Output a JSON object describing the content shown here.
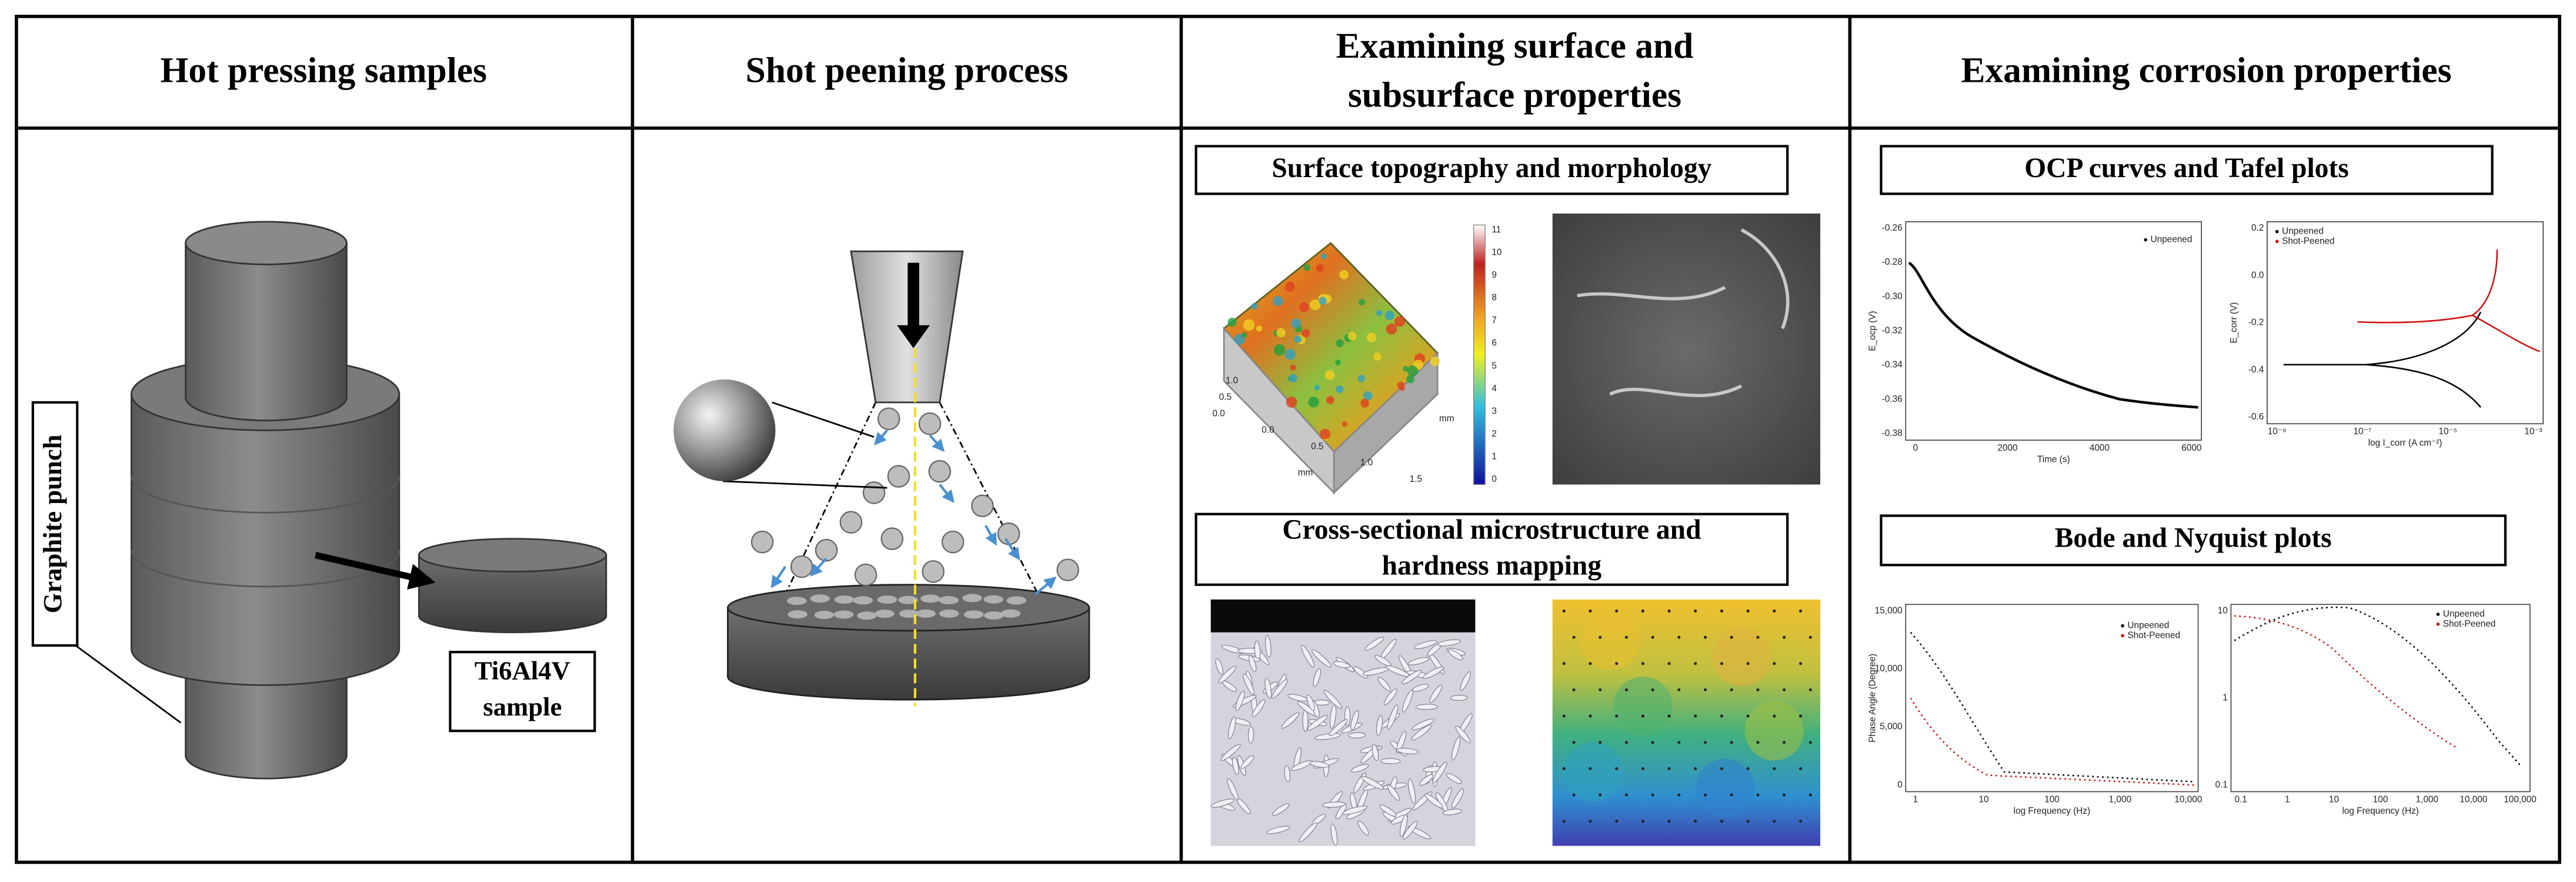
{
  "panels": [
    {
      "title": [
        "Hot pressing samples"
      ],
      "labels": {
        "punch": "Graphite punch",
        "sample": [
          "Ti6Al4V",
          "sample"
        ]
      }
    },
    {
      "title": [
        "Shot peening process"
      ]
    },
    {
      "title": [
        "Examining surface and",
        "subsurface properties"
      ],
      "sections": [
        {
          "title": [
            "Surface topography and morphology"
          ],
          "colorbar": [
            "11",
            "10",
            "9",
            "8",
            "7",
            "6",
            "5",
            "4",
            "3",
            "2",
            "1",
            "0"
          ],
          "axis_x": [
            "0.0",
            "0.5",
            "1.0",
            "1.5"
          ],
          "axis_y": [
            "0.0",
            "0.5",
            "1.0"
          ],
          "unit": "mm"
        },
        {
          "title": [
            "Cross-sectional microstructure and",
            "hardness mapping"
          ]
        }
      ]
    },
    {
      "title": [
        "Examining corrosion properties"
      ],
      "sections": [
        {
          "title": [
            "OCP curves and Tafel plots"
          ]
        },
        {
          "title": [
            "Bode and Nyquist plots"
          ]
        }
      ],
      "plots": {
        "ocp": {
          "legend": [
            "Unpeened"
          ],
          "ylabel": "E_ocp (V)",
          "xlabel": "Time (s)",
          "yticks": [
            "-0.26",
            "-0.28",
            "-0.30",
            "-0.32",
            "-0.34",
            "-0.36",
            "-0.38"
          ],
          "xticks": [
            "0",
            "2000",
            "4000",
            "6000"
          ]
        },
        "tafel": {
          "legend": [
            "Unpeened",
            "Shot-Peened"
          ],
          "ylabel": "E_corr (V)",
          "xlabel": "log I_corr (A cm⁻²)",
          "yticks": [
            "0.2",
            "0.0",
            "-0.2",
            "-0.4",
            "-0.6"
          ],
          "xticks": [
            "10⁻⁹",
            "10⁻⁷",
            "10⁻⁵",
            "10⁻³"
          ]
        },
        "bode": {
          "legend": [
            "Unpeened",
            "Shot-Peened"
          ],
          "ylabel": "Phase Angle (Degree)",
          "xlabel": "log Frequency (Hz)",
          "yticks": [
            "15,000",
            "10,000",
            "5,000",
            "0"
          ],
          "xticks": [
            "1",
            "10",
            "100",
            "1,000",
            "10,000"
          ]
        },
        "nyquist": {
          "legend": [
            "Unpeened",
            "Shot-Peened"
          ],
          "xlabel": "log Frequency (Hz)",
          "yticks": [
            "10",
            "1",
            "0.1"
          ],
          "xticks": [
            "0.1",
            "1",
            "10",
            "100",
            "1,000",
            "10,000",
            "100,000"
          ]
        }
      }
    }
  ]
}
